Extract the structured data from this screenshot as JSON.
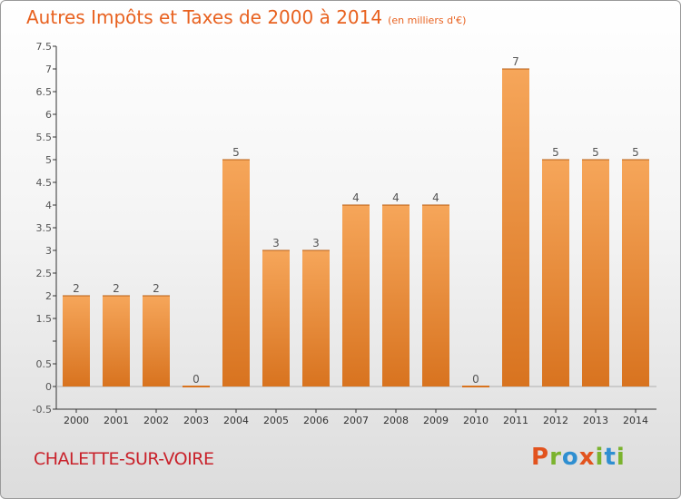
{
  "header": {
    "title": "Autres Impôts et Taxes de 2000 à 2014",
    "unit": "(en milliers d'€)"
  },
  "footer": {
    "town": "CHALETTE-SUR-VOIRE",
    "brand": "Proxiti",
    "brand_letter_colors": [
      "#e2531e",
      "#7bb32e",
      "#2f8fd1",
      "#e2531e",
      "#7bb32e",
      "#2f8fd1",
      "#7bb32e"
    ]
  },
  "colors": {
    "bar_top": "#f6a65a",
    "bar_bottom": "#d8731f",
    "label": "#555555",
    "axis": "#333333",
    "title": "#e8611f",
    "town": "#c9222b"
  },
  "chart_data": {
    "type": "bar",
    "title": "Autres Impôts et Taxes de 2000 à 2014",
    "subtitle": "(en milliers d'€)",
    "xlabel": "",
    "ylabel": "",
    "categories": [
      "2000",
      "2001",
      "2002",
      "2003",
      "2004",
      "2005",
      "2006",
      "2007",
      "2008",
      "2009",
      "2010",
      "2011",
      "2012",
      "2013",
      "2014"
    ],
    "values": [
      2,
      2,
      2,
      0,
      5,
      3,
      3,
      4,
      4,
      4,
      0,
      7,
      5,
      5,
      5
    ],
    "data_labels": [
      "2",
      "2",
      "2",
      "0",
      "5",
      "3",
      "3",
      "4",
      "4",
      "4",
      "0",
      "7",
      "5",
      "5",
      "5"
    ],
    "ylim": [
      -0.5,
      7.5
    ],
    "yticks": [
      -0.5,
      0,
      0.5,
      1,
      1.5,
      2,
      2.5,
      3,
      3.5,
      4,
      4.5,
      5,
      5.5,
      6,
      6.5,
      7,
      7.5
    ],
    "ytick_labels": [
      "-0.5",
      "0",
      "0.5",
      "",
      "1.5",
      "2",
      "2.5",
      "3",
      "3.5",
      "4",
      "4.5",
      "5",
      "5.5",
      "6",
      "6.5",
      "7",
      "7.5"
    ],
    "grid": false,
    "legend": "none"
  }
}
